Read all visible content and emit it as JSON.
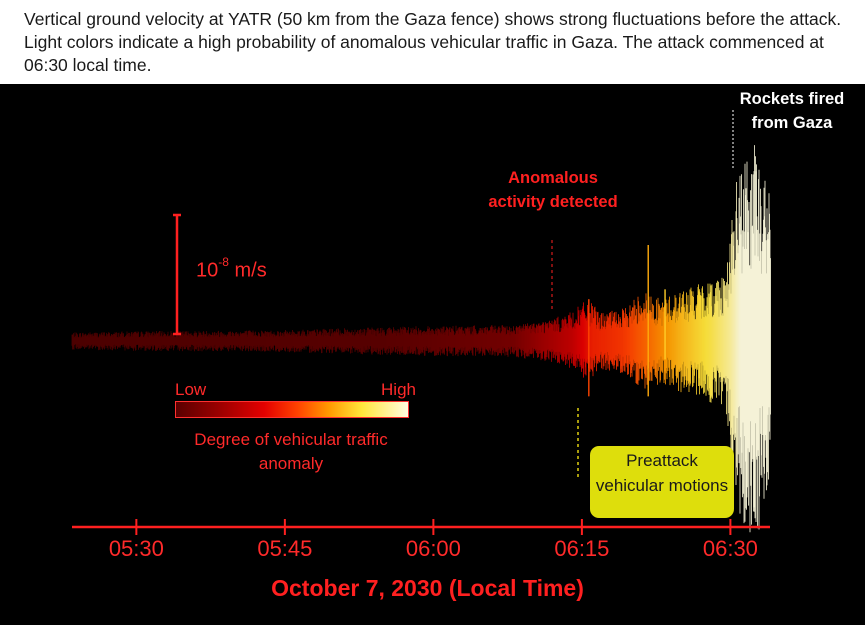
{
  "caption": "Vertical ground velocity at YATR (50 km from the Gaza fence) shows strong fluctuations before the attack. Light colors indicate a high probability of anomalous vehicular traffic in Gaza. The attack commenced at 06:30 local time.",
  "colors": {
    "background": "#000000",
    "accent_red": "#ff2a2a",
    "preattack_box": "#dede0c",
    "colorbar_low": "#5a0000",
    "colorbar_high": "#fffde0"
  },
  "chart_data": {
    "type": "line",
    "title": "Vertical ground velocity at YATR",
    "xlabel": "October 7, 2030 (Local Time)",
    "ylabel": "",
    "x_ticks": [
      "05:30",
      "05:45",
      "06:00",
      "06:15",
      "06:30"
    ],
    "x_tick_minutes": [
      330,
      345,
      360,
      375,
      390
    ],
    "xlim_minutes": [
      323.5,
      394
    ],
    "scale_bar": {
      "label_base": "10",
      "label_exp": "-8",
      "label_unit": " m/s",
      "value": 1e-08
    },
    "colorbar": {
      "low_label": "Low",
      "high_label": "High",
      "title": "Degree of vehicular traffic anomaly"
    },
    "envelope_units_of_scale": [
      [
        323.5,
        0.07
      ],
      [
        330,
        0.08
      ],
      [
        345,
        0.09
      ],
      [
        358,
        0.12
      ],
      [
        368,
        0.13
      ],
      [
        372,
        0.18
      ],
      [
        374,
        0.24
      ],
      [
        375.5,
        0.34
      ],
      [
        377,
        0.23
      ],
      [
        379.5,
        0.27
      ],
      [
        381,
        0.42
      ],
      [
        383,
        0.34
      ],
      [
        385,
        0.42
      ],
      [
        387.5,
        0.48
      ],
      [
        389.5,
        0.58
      ],
      [
        390.7,
        1.4
      ],
      [
        392.3,
        1.6
      ],
      [
        393,
        1.55
      ],
      [
        394,
        1.2
      ]
    ],
    "anomaly_level": [
      [
        323.5,
        0.0
      ],
      [
        355,
        0.03
      ],
      [
        368,
        0.1
      ],
      [
        374,
        0.3
      ],
      [
        376,
        0.45
      ],
      [
        379,
        0.5
      ],
      [
        382,
        0.6
      ],
      [
        385,
        0.72
      ],
      [
        388,
        0.82
      ],
      [
        390,
        0.92
      ],
      [
        391,
        1.0
      ],
      [
        394,
        1.0
      ]
    ],
    "spikes": [
      {
        "minute": 375.7,
        "up": 0.34,
        "down": 0.45
      },
      {
        "minute": 381.7,
        "up": 0.78,
        "down": 0.45
      },
      {
        "minute": 383.4,
        "up": 0.42,
        "down": 0.15
      }
    ],
    "annotations": [
      {
        "text": "Anomalous activity detected",
        "minute": 373.5
      },
      {
        "text": "Rockets fired from Gaza",
        "minute": 390.3
      },
      {
        "text": "Preattack vehicular motions",
        "minute": 375.5
      }
    ]
  },
  "labels": {
    "rockets": "Rockets fired from Gaza",
    "anomaly": "Anomalous activity detected",
    "preattack": "Preattack vehicular motions"
  }
}
